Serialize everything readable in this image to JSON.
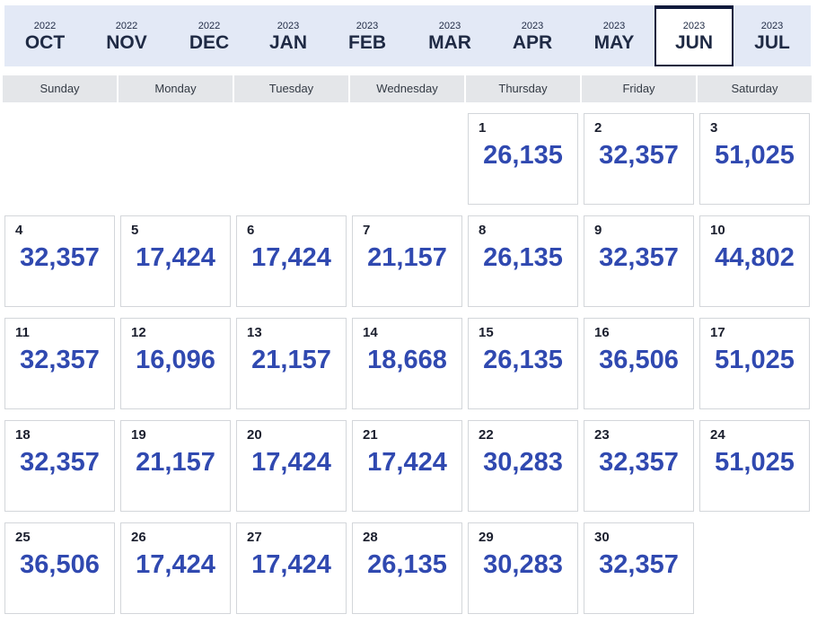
{
  "months": [
    {
      "year": "2022",
      "month": "OCT"
    },
    {
      "year": "2022",
      "month": "NOV"
    },
    {
      "year": "2022",
      "month": "DEC"
    },
    {
      "year": "2023",
      "month": "JAN"
    },
    {
      "year": "2023",
      "month": "FEB"
    },
    {
      "year": "2023",
      "month": "MAR"
    },
    {
      "year": "2023",
      "month": "APR"
    },
    {
      "year": "2023",
      "month": "MAY"
    },
    {
      "year": "2023",
      "month": "JUN",
      "selected": true
    },
    {
      "year": "2023",
      "month": "JUL"
    }
  ],
  "weekdays": [
    "Sunday",
    "Monday",
    "Tuesday",
    "Wednesday",
    "Thursday",
    "Friday",
    "Saturday"
  ],
  "days": [
    {
      "day": "1",
      "value": "26,135"
    },
    {
      "day": "2",
      "value": "32,357"
    },
    {
      "day": "3",
      "value": "51,025"
    },
    {
      "day": "4",
      "value": "32,357"
    },
    {
      "day": "5",
      "value": "17,424"
    },
    {
      "day": "6",
      "value": "17,424"
    },
    {
      "day": "7",
      "value": "21,157"
    },
    {
      "day": "8",
      "value": "26,135"
    },
    {
      "day": "9",
      "value": "32,357"
    },
    {
      "day": "10",
      "value": "44,802"
    },
    {
      "day": "11",
      "value": "32,357"
    },
    {
      "day": "12",
      "value": "16,096"
    },
    {
      "day": "13",
      "value": "21,157"
    },
    {
      "day": "14",
      "value": "18,668"
    },
    {
      "day": "15",
      "value": "26,135"
    },
    {
      "day": "16",
      "value": "36,506"
    },
    {
      "day": "17",
      "value": "51,025"
    },
    {
      "day": "18",
      "value": "32,357"
    },
    {
      "day": "19",
      "value": "21,157"
    },
    {
      "day": "20",
      "value": "17,424"
    },
    {
      "day": "21",
      "value": "17,424"
    },
    {
      "day": "22",
      "value": "30,283"
    },
    {
      "day": "23",
      "value": "32,357"
    },
    {
      "day": "24",
      "value": "51,025"
    },
    {
      "day": "25",
      "value": "36,506"
    },
    {
      "day": "26",
      "value": "17,424"
    },
    {
      "day": "27",
      "value": "17,424"
    },
    {
      "day": "28",
      "value": "26,135"
    },
    {
      "day": "29",
      "value": "30,283"
    },
    {
      "day": "30",
      "value": "32,357"
    }
  ],
  "colors": {
    "accent": "#3049b0",
    "strip": "#e3e9f6",
    "selected_border": "#101b3d"
  }
}
